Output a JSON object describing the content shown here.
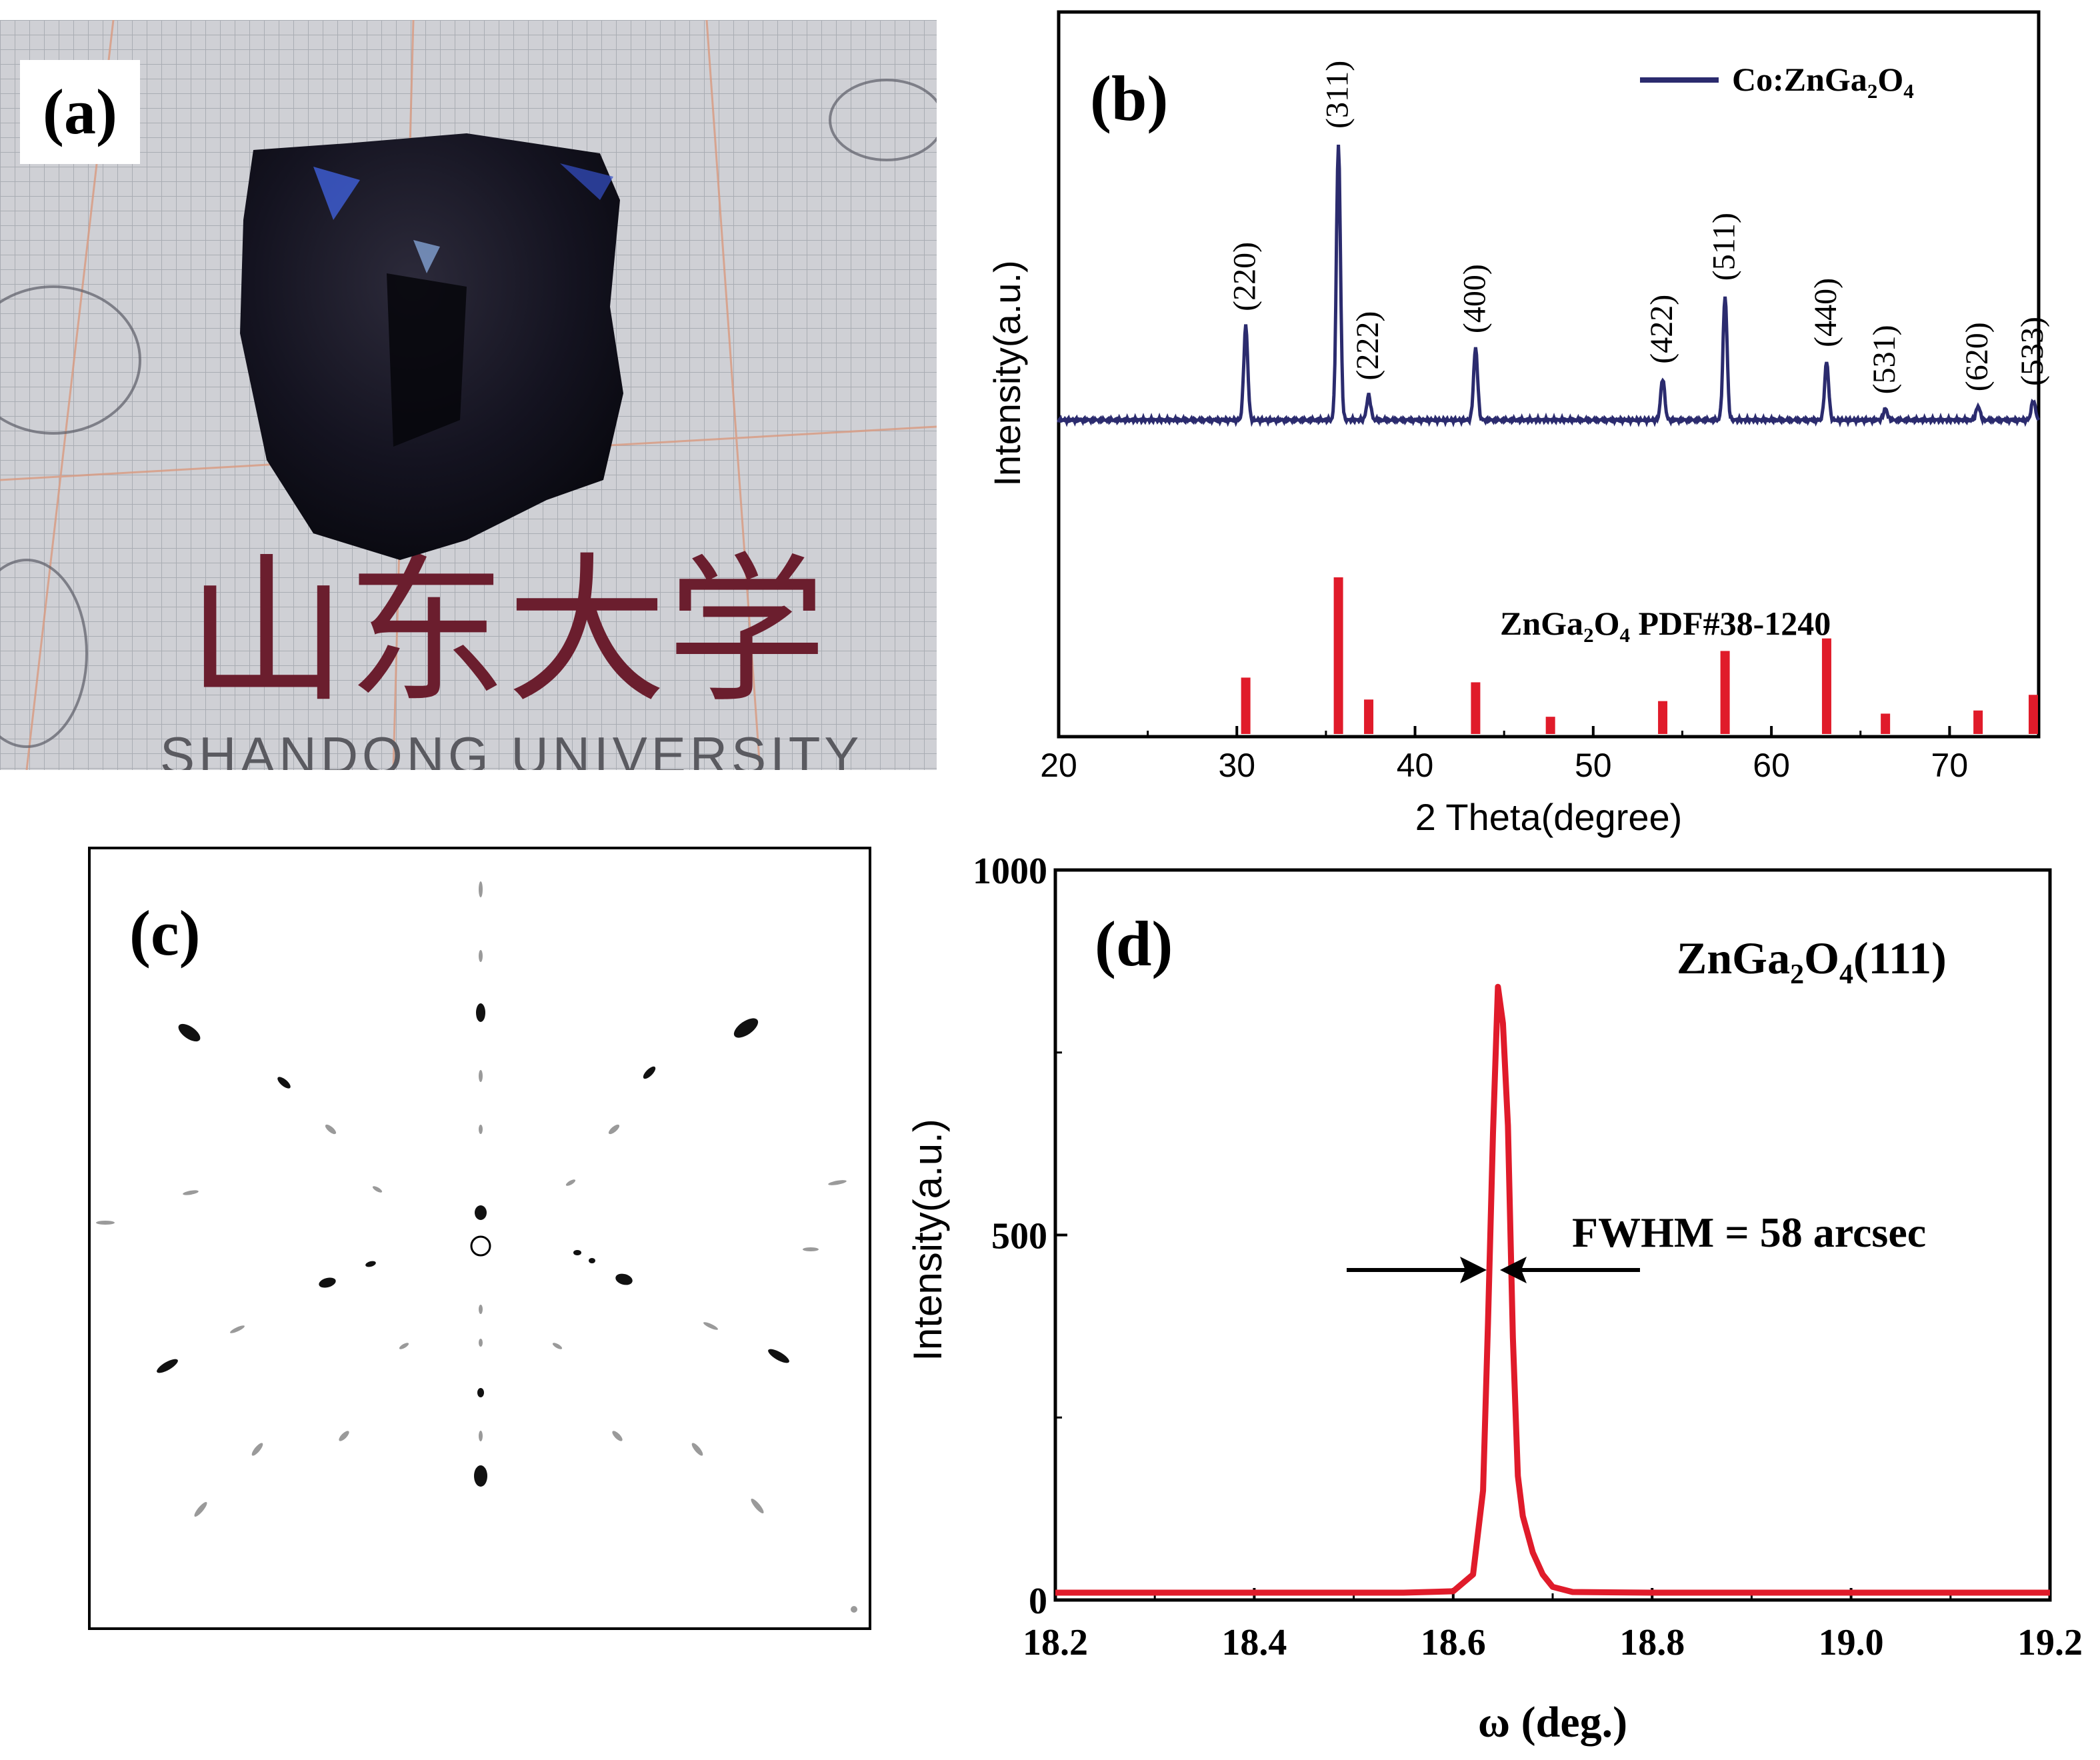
{
  "panel_a": {
    "label": "(a)",
    "logo_text": "山东大学",
    "logo_subtext": "SHANDONG UNIVERSITY"
  },
  "panel_b": {
    "label": "(b)"
  },
  "panel_c": {
    "label": "(c)"
  },
  "panel_d": {
    "label": "(d)"
  },
  "chart_data": [
    {
      "type": "line",
      "panel": "(b)",
      "xlabel": "2 Theta(degree)",
      "ylabel": "Intensity(a.u.)",
      "xlim": [
        20,
        75
      ],
      "x_ticks": [
        20,
        30,
        40,
        50,
        60,
        70
      ],
      "grid": false,
      "legend_position": "top-right",
      "colors": {
        "measured": "#2b2b6e",
        "reference": "#e01b2a"
      },
      "series": [
        {
          "name": "Co:ZnGa₂O₄",
          "peaks": [
            {
              "x": 30.5,
              "height": 0.34,
              "hkl": "(220)"
            },
            {
              "x": 35.7,
              "height": 1.0,
              "hkl": "(311)"
            },
            {
              "x": 37.4,
              "height": 0.09,
              "hkl": "(222)"
            },
            {
              "x": 43.4,
              "height": 0.26,
              "hkl": "(400)"
            },
            {
              "x": 53.9,
              "height": 0.15,
              "hkl": "(422)"
            },
            {
              "x": 57.4,
              "height": 0.45,
              "hkl": "(511)"
            },
            {
              "x": 63.1,
              "height": 0.21,
              "hkl": "(440)"
            },
            {
              "x": 66.4,
              "height": 0.04,
              "hkl": "(531)"
            },
            {
              "x": 71.6,
              "height": 0.05,
              "hkl": "(620)"
            },
            {
              "x": 74.7,
              "height": 0.07,
              "hkl": "(533)"
            }
          ]
        },
        {
          "name": "ZnGa₂O₄  PDF#38-1240",
          "sticks": [
            {
              "x": 30.5,
              "height": 0.36
            },
            {
              "x": 35.7,
              "height": 1.0
            },
            {
              "x": 37.4,
              "height": 0.22
            },
            {
              "x": 43.4,
              "height": 0.33
            },
            {
              "x": 47.6,
              "height": 0.11
            },
            {
              "x": 53.9,
              "height": 0.21
            },
            {
              "x": 57.4,
              "height": 0.53
            },
            {
              "x": 63.1,
              "height": 0.61
            },
            {
              "x": 66.4,
              "height": 0.13
            },
            {
              "x": 71.6,
              "height": 0.15
            },
            {
              "x": 74.7,
              "height": 0.25
            }
          ]
        }
      ]
    },
    {
      "type": "line",
      "panel": "(d)",
      "xlabel": "ω (deg.)",
      "ylabel": "Intensity(a.u.)",
      "xlim": [
        18.2,
        19.2
      ],
      "ylim": [
        0,
        1000
      ],
      "x_ticks": [
        "18.2",
        "18.4",
        "18.6",
        "18.8",
        "19.0",
        "19.2"
      ],
      "y_ticks": [
        "0",
        "500",
        "1000"
      ],
      "grid": false,
      "color": "#e01b2a",
      "annotation_title": "ZnGa₂O₄(111)",
      "fwhm_label": "FWHM = 58 arcsec",
      "series": [
        {
          "points": [
            [
              18.2,
              10
            ],
            [
              18.55,
              10
            ],
            [
              18.6,
              12
            ],
            [
              18.62,
              35
            ],
            [
              18.63,
              150
            ],
            [
              18.635,
              380
            ],
            [
              18.64,
              640
            ],
            [
              18.645,
              840
            ],
            [
              18.65,
              790
            ],
            [
              18.655,
              650
            ],
            [
              18.66,
              360
            ],
            [
              18.665,
              170
            ],
            [
              18.67,
              115
            ],
            [
              18.68,
              65
            ],
            [
              18.69,
              35
            ],
            [
              18.7,
              18
            ],
            [
              18.72,
              11
            ],
            [
              18.8,
              10
            ],
            [
              19.2,
              10
            ]
          ]
        }
      ]
    }
  ]
}
